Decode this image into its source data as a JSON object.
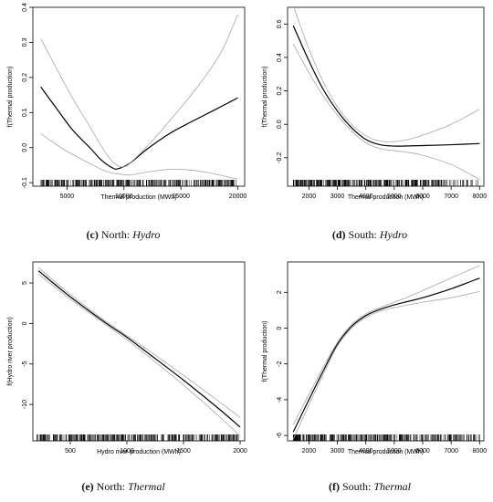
{
  "captions": [
    {
      "letter": "(c)",
      "text": "North: ",
      "emph": "Hydro"
    },
    {
      "letter": "(d)",
      "text": "South: ",
      "emph": "Hydro"
    },
    {
      "letter": "(e)",
      "text": "North: ",
      "emph": "Thermal"
    },
    {
      "letter": "(f)",
      "text": "South: ",
      "emph": "Thermal"
    }
  ],
  "colors": {
    "fit": "#000000",
    "band": "#a8a8a8",
    "axis": "#000000",
    "rug": "#000000"
  },
  "chart_data": [
    {
      "type": "line",
      "xlabel": "Thermal production (MWh)",
      "ylabel": "f(Thermal production)",
      "xlim": [
        2000,
        20600
      ],
      "ylim": [
        -0.11,
        0.4
      ],
      "xticks": [
        5000,
        10000,
        15000,
        20000
      ],
      "yticks": [
        -0.1,
        0.0,
        0.1,
        0.2,
        0.3,
        0.4
      ],
      "grid": false,
      "rug": {
        "from": 2700,
        "to": 20000,
        "density": "dense"
      },
      "series": [
        {
          "role": "fit",
          "x": [
            2700,
            4000,
            5500,
            7000,
            8000,
            9000,
            9500,
            10500,
            12000,
            14000,
            16000,
            18000,
            20000
          ],
          "y": [
            0.173,
            0.115,
            0.05,
            0.0,
            -0.035,
            -0.058,
            -0.06,
            -0.045,
            -0.005,
            0.04,
            0.075,
            0.108,
            0.142
          ]
        },
        {
          "role": "upper",
          "x": [
            2700,
            4000,
            5500,
            7000,
            8000,
            9000,
            10000,
            11000,
            12500,
            14500,
            16500,
            18500,
            20000
          ],
          "y": [
            0.31,
            0.23,
            0.14,
            0.06,
            0.005,
            -0.04,
            -0.055,
            -0.03,
            0.02,
            0.095,
            0.175,
            0.27,
            0.38
          ]
        },
        {
          "role": "lower",
          "x": [
            2700,
            4000,
            5500,
            7000,
            8000,
            9000,
            9500,
            10500,
            12000,
            14000,
            15500,
            17500,
            20000
          ],
          "y": [
            0.04,
            0.01,
            -0.02,
            -0.045,
            -0.062,
            -0.073,
            -0.075,
            -0.078,
            -0.07,
            -0.062,
            -0.063,
            -0.072,
            -0.09
          ]
        }
      ]
    },
    {
      "type": "line",
      "xlabel": "Thermal production (MWh)",
      "ylabel": "f(Thermal production)",
      "xlim": [
        1250,
        8150
      ],
      "ylim": [
        -0.37,
        0.7
      ],
      "xticks": [
        2000,
        3000,
        4000,
        5000,
        6000,
        7000,
        8000
      ],
      "yticks": [
        -0.2,
        0.0,
        0.2,
        0.4,
        0.6
      ],
      "grid": false,
      "rug": {
        "from": 1450,
        "to": 8000,
        "density": "dense-left"
      },
      "series": [
        {
          "role": "fit",
          "x": [
            1450,
            2000,
            2500,
            3000,
            3500,
            4000,
            4500,
            5000,
            5500,
            6000,
            7000,
            8000
          ],
          "y": [
            0.59,
            0.38,
            0.21,
            0.08,
            -0.02,
            -0.09,
            -0.122,
            -0.13,
            -0.129,
            -0.127,
            -0.122,
            -0.115
          ]
        },
        {
          "role": "upper",
          "x": [
            1450,
            2000,
            2500,
            3000,
            3500,
            4000,
            4500,
            5000,
            5500,
            6000,
            7000,
            8000
          ],
          "y": [
            0.71,
            0.45,
            0.255,
            0.105,
            0.0,
            -0.068,
            -0.1,
            -0.103,
            -0.09,
            -0.065,
            0.0,
            0.09
          ]
        },
        {
          "role": "lower",
          "x": [
            1450,
            2000,
            2500,
            3000,
            3500,
            4000,
            4500,
            5000,
            5500,
            6000,
            7000,
            8000
          ],
          "y": [
            0.48,
            0.31,
            0.17,
            0.055,
            -0.04,
            -0.11,
            -0.145,
            -0.158,
            -0.168,
            -0.185,
            -0.24,
            -0.33
          ]
        }
      ]
    },
    {
      "type": "line",
      "xlabel": "Hydro river production (MWh)",
      "ylabel": "f(Hydro river production)",
      "xlim": [
        170,
        2040
      ],
      "ylim": [
        -14.5,
        7.6
      ],
      "xticks": [
        500,
        1000,
        1500,
        2000
      ],
      "yticks": [
        -10,
        -5,
        0,
        5
      ],
      "grid": false,
      "rug": {
        "from": 200,
        "to": 2000,
        "density": "dense"
      },
      "series": [
        {
          "role": "fit",
          "x": [
            220,
            500,
            800,
            1000,
            1200,
            1500,
            1800,
            2000
          ],
          "y": [
            6.5,
            3.3,
            0.2,
            -1.7,
            -3.8,
            -7.0,
            -10.4,
            -12.8
          ]
        },
        {
          "role": "upper",
          "x": [
            220,
            500,
            800,
            1000,
            1200,
            1500,
            1800,
            2000
          ],
          "y": [
            6.9,
            3.6,
            0.4,
            -1.5,
            -3.4,
            -6.4,
            -9.5,
            -11.6
          ]
        },
        {
          "role": "lower",
          "x": [
            220,
            500,
            800,
            1000,
            1200,
            1500,
            1800,
            2000
          ],
          "y": [
            6.1,
            3.0,
            0.0,
            -2.0,
            -4.2,
            -7.6,
            -11.3,
            -13.9
          ]
        }
      ]
    },
    {
      "type": "line",
      "xlabel": "Thermal production (MWh)",
      "ylabel": "f(Thermal production)",
      "xlim": [
        1250,
        8150
      ],
      "ylim": [
        -6.3,
        3.7
      ],
      "xticks": [
        2000,
        3000,
        4000,
        5000,
        6000,
        7000,
        8000
      ],
      "yticks": [
        -6,
        -4,
        -2,
        0,
        2
      ],
      "grid": false,
      "rug": {
        "from": 1450,
        "to": 8000,
        "density": "dense-left"
      },
      "series": [
        {
          "role": "fit",
          "x": [
            1450,
            2000,
            2500,
            3000,
            3500,
            4000,
            4500,
            5000,
            5500,
            6000,
            7000,
            8000
          ],
          "y": [
            -5.8,
            -4.0,
            -2.4,
            -0.9,
            0.1,
            0.7,
            1.05,
            1.3,
            1.5,
            1.7,
            2.2,
            2.8
          ]
        },
        {
          "role": "upper",
          "x": [
            1450,
            2000,
            2500,
            3000,
            3500,
            4000,
            4500,
            5000,
            5500,
            6000,
            7000,
            8000
          ],
          "y": [
            -5.4,
            -3.7,
            -2.2,
            -0.8,
            0.2,
            0.8,
            1.15,
            1.45,
            1.75,
            2.1,
            2.8,
            3.5
          ]
        },
        {
          "role": "lower",
          "x": [
            1450,
            2000,
            2500,
            3000,
            3500,
            4000,
            4500,
            5000,
            5500,
            6000,
            7000,
            8000
          ],
          "y": [
            -6.2,
            -4.3,
            -2.6,
            -1.0,
            0.0,
            0.6,
            0.95,
            1.15,
            1.3,
            1.45,
            1.7,
            2.05
          ]
        }
      ]
    }
  ]
}
